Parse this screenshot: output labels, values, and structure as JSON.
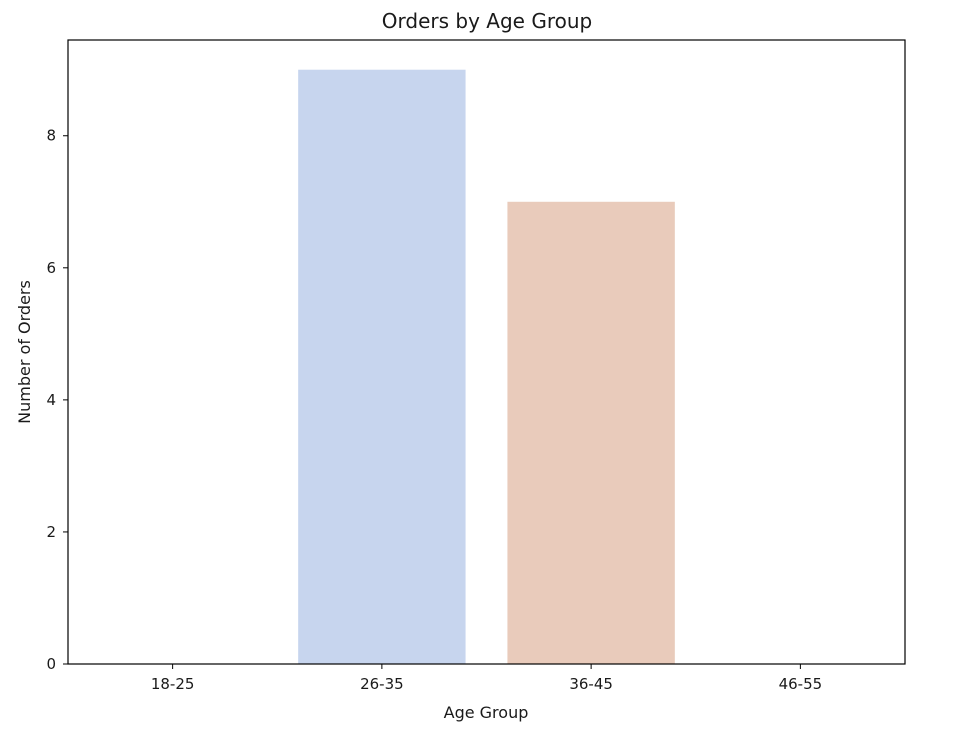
{
  "chart_data": {
    "type": "bar",
    "title": "Orders by Age Group",
    "xlabel": "Age Group",
    "ylabel": "Number of Orders",
    "categories": [
      "18-25",
      "26-35",
      "36-45",
      "46-55"
    ],
    "values": [
      0,
      9,
      7,
      0
    ],
    "bar_colors": [
      "#f7f0ea",
      "#c7d5ee",
      "#e9cbbb",
      "#f7f0ea"
    ],
    "yticks": [
      0,
      2,
      4,
      6,
      8
    ],
    "ylim": [
      0,
      9.45
    ],
    "grid": false,
    "legend": "none"
  }
}
